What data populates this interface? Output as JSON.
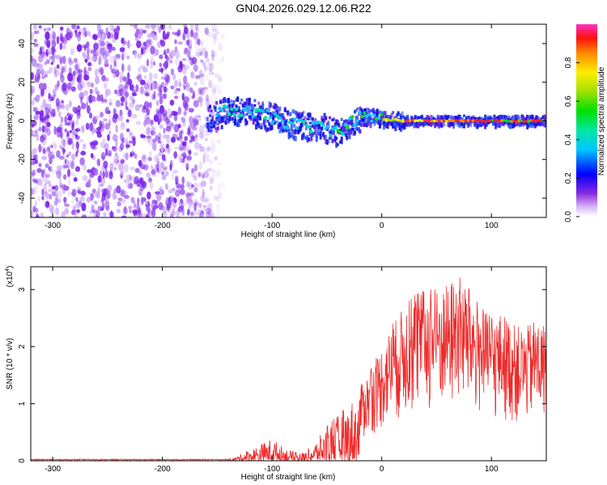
{
  "title": "GN04.2026.029.12.06.R22",
  "colors": {
    "spectrogram_noise": "#7a22e8",
    "snr_line": "#ee2a2a",
    "axis": "#000000"
  },
  "chart_data": [
    {
      "type": "heatmap",
      "name": "spectrogram",
      "xlabel": "Height of straight line (km)",
      "ylabel": "Frequency (Hz)",
      "xlim": [
        -320,
        150
      ],
      "ylim": [
        -50,
        50
      ],
      "xticks": [
        -300,
        -200,
        -100,
        0,
        100
      ],
      "yticks": [
        -40,
        -20,
        0,
        20,
        40
      ],
      "noise_region_end_km": -160,
      "signal_track": {
        "x": [
          -160,
          -140,
          -120,
          -100,
          -80,
          -60,
          -50,
          -40,
          -30,
          -20,
          -10,
          0,
          20,
          40,
          60,
          80,
          100,
          120,
          150
        ],
        "y": [
          0,
          6,
          4,
          2,
          -2,
          -3,
          -4,
          -6,
          -1,
          2,
          2,
          1,
          0,
          0,
          0,
          0,
          0,
          0,
          0
        ]
      },
      "colorbar": {
        "label": "Normalized spectral amplitude",
        "ticks": [
          "0.0",
          "0.2",
          "0.4",
          "0.6",
          "0.8"
        ],
        "range": [
          0,
          1
        ]
      }
    },
    {
      "type": "line",
      "name": "snr",
      "xlabel": "Height of straight line (km)",
      "ylabel": "SNR (10 * v/v)",
      "scale_label": "(x10",
      "scale_exp": "4",
      "scale_close": ")",
      "xlim": [
        -320,
        150
      ],
      "ylim": [
        0,
        3.4
      ],
      "xticks": [
        -300,
        -200,
        -100,
        0,
        100
      ],
      "yticks": [
        0,
        1,
        2,
        3
      ],
      "envelope": {
        "x": [
          -320,
          -140,
          -130,
          -120,
          -110,
          -100,
          -90,
          -80,
          -70,
          -60,
          -50,
          -40,
          -30,
          -20,
          -10,
          0,
          10,
          20,
          30,
          40,
          50,
          60,
          70,
          80,
          90,
          100,
          110,
          120,
          130,
          140,
          150
        ],
        "y": [
          0.02,
          0.02,
          0.1,
          0.2,
          0.3,
          0.4,
          0.25,
          0.15,
          0.15,
          0.35,
          0.6,
          0.8,
          1.0,
          1.3,
          1.6,
          2.0,
          2.4,
          2.7,
          2.9,
          3.0,
          3.0,
          3.1,
          3.3,
          3.0,
          2.7,
          2.5,
          2.6,
          2.4,
          2.3,
          2.5,
          2.3
        ]
      }
    }
  ]
}
